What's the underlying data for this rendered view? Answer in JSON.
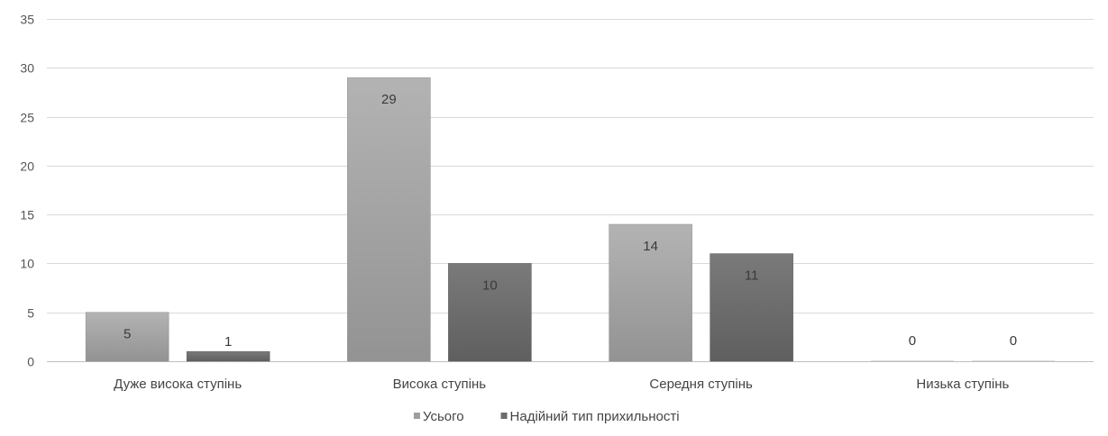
{
  "chart_data": {
    "type": "bar",
    "title": "",
    "xlabel": "",
    "ylabel": "",
    "ylim": [
      0,
      35
    ],
    "yticks": [
      0,
      5,
      10,
      15,
      20,
      25,
      30,
      35
    ],
    "grid": true,
    "legend_position": "bottom",
    "categories": [
      "Дуже висока ступінь",
      "Висока ступінь",
      "Середня ступінь",
      "Низька ступінь"
    ],
    "series": [
      {
        "name": "Усього",
        "values": [
          5,
          29,
          14,
          0
        ],
        "color": "#9e9e9e"
      },
      {
        "name": "Надійний тип прихильності",
        "values": [
          1,
          10,
          11,
          0
        ],
        "color": "#6b6b6b"
      }
    ]
  }
}
